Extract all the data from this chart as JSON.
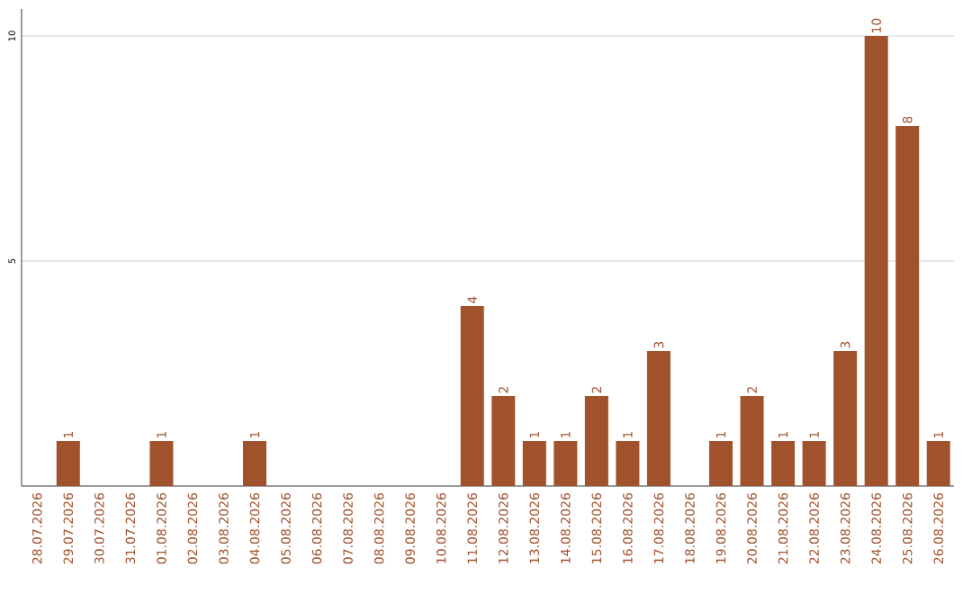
{
  "chart_data": {
    "type": "bar",
    "categories": [
      "28.07.2026",
      "29.07.2026",
      "30.07.2026",
      "31.07.2026",
      "01.08.2026",
      "02.08.2026",
      "03.08.2026",
      "04.08.2026",
      "05.08.2026",
      "06.08.2026",
      "07.08.2026",
      "08.08.2026",
      "09.08.2026",
      "10.08.2026",
      "11.08.2026",
      "12.08.2026",
      "13.08.2026",
      "14.08.2026",
      "15.08.2026",
      "16.08.2026",
      "17.08.2026",
      "18.08.2026",
      "19.08.2026",
      "20.08.2026",
      "21.08.2026",
      "22.08.2026",
      "23.08.2026",
      "24.08.2026",
      "25.08.2026",
      "26.08.2026"
    ],
    "values": [
      0,
      1,
      0,
      0,
      1,
      0,
      0,
      1,
      0,
      0,
      0,
      0,
      0,
      0,
      4,
      2,
      1,
      1,
      2,
      1,
      3,
      0,
      1,
      2,
      1,
      1,
      3,
      10,
      8,
      1
    ],
    "value_labels": [
      null,
      "1",
      null,
      null,
      "1",
      null,
      null,
      "1",
      null,
      null,
      null,
      null,
      null,
      null,
      "4",
      "2",
      "1",
      "1",
      "2",
      "1",
      "3",
      null,
      "1",
      "2",
      "1",
      "1",
      "3",
      "10",
      "8",
      "1"
    ],
    "color": "#a0522d",
    "ylim": [
      0,
      10.6
    ],
    "yticks": [
      5,
      10
    ],
    "grid": "y"
  }
}
